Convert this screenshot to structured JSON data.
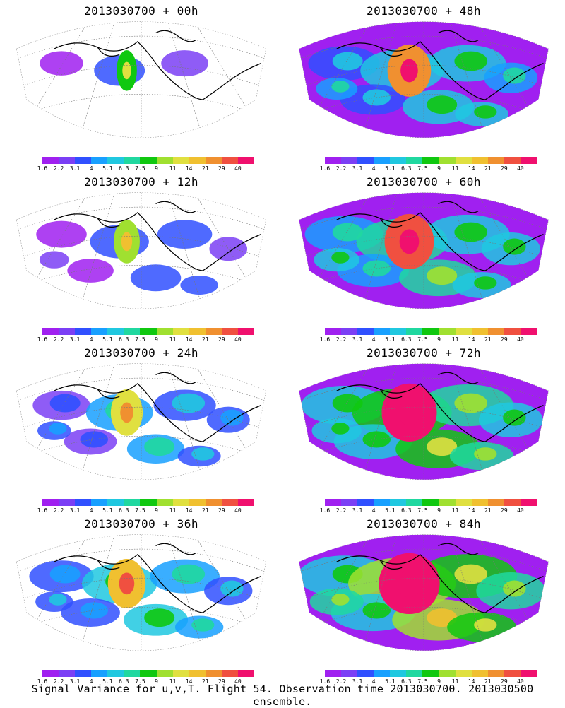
{
  "footer": "Signal Variance for u,v,T. Flight 54. Observation time 2013030700. 2013030500 ensemble.",
  "colorbar": {
    "labels": [
      "1.6",
      "2.2",
      "3.1",
      "4",
      "5.1",
      "6.3",
      "7.5",
      "9",
      "11",
      "14",
      "21",
      "29",
      "40"
    ],
    "colors": [
      "#a020f0",
      "#7b3ff5",
      "#3050ff",
      "#18a0ff",
      "#20c8e0",
      "#20d8a0",
      "#10c810",
      "#a0e030",
      "#e0e040",
      "#f0c030",
      "#f09030",
      "#f05040",
      "#f0106e"
    ]
  },
  "panels": [
    {
      "title": "2013030700 + 00h",
      "level": 0
    },
    {
      "title": "2013030700 + 48h",
      "level": 4
    },
    {
      "title": "2013030700 + 12h",
      "level": 1
    },
    {
      "title": "2013030700 + 60h",
      "level": 5
    },
    {
      "title": "2013030700 + 24h",
      "level": 2
    },
    {
      "title": "2013030700 + 72h",
      "level": 6
    },
    {
      "title": "2013030700 + 36h",
      "level": 3
    },
    {
      "title": "2013030700 + 84h",
      "level": 7
    }
  ]
}
